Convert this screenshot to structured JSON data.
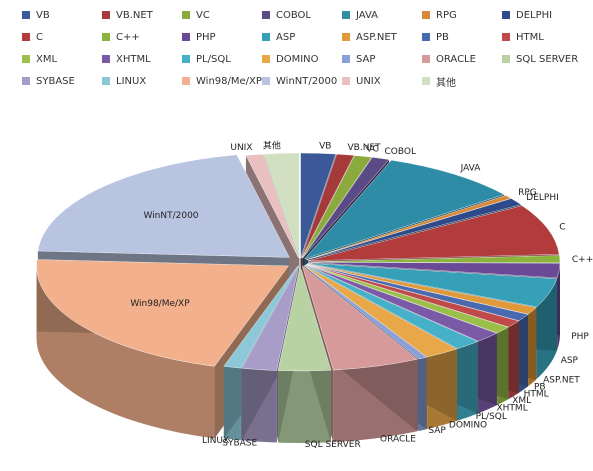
{
  "chart_data": {
    "type": "pie",
    "style": "3d-exploded",
    "legend_position": "top",
    "categories": [
      "VB",
      "VB.NET",
      "VC",
      "COBOL",
      "JAVA",
      "RPG",
      "DELPHI",
      "C",
      "C++",
      "PHP",
      "ASP",
      "ASP.NET",
      "PB",
      "HTML",
      "XML",
      "XHTML",
      "PL/SQL",
      "DOMINO",
      "SAP",
      "ORACLE",
      "SQL SERVER",
      "SYBASE",
      "LINUX",
      "Win98/Me/XP",
      "WinNT/2000",
      "UNIX",
      "其他"
    ],
    "values": [
      2.0,
      1.0,
      1.0,
      1.0,
      8.0,
      0.5,
      1.0,
      7.0,
      1.0,
      2.0,
      4.0,
      1.0,
      1.0,
      1.0,
      1.0,
      1.5,
      1.5,
      2.0,
      0.5,
      5.0,
      3.0,
      2.0,
      1.0,
      19.0,
      18.5,
      1.0,
      2.0
    ],
    "colors": [
      "#3b5998",
      "#a63a3a",
      "#8aaa3c",
      "#5a4a86",
      "#2f8ca6",
      "#d88a3a",
      "#2e4a8a",
      "#b23c3c",
      "#8ab43c",
      "#6a4a96",
      "#36a0b8",
      "#e09a3c",
      "#4a6ab0",
      "#c04a4a",
      "#9ac04a",
      "#7a5aa6",
      "#46b0c8",
      "#e8a84a",
      "#8aa0d6",
      "#d69a9a",
      "#b8d2a4",
      "#a89cc8",
      "#8cc8d8",
      "#f2b08c",
      "#b8c4e0",
      "#e8c0c0",
      "#d0e0c0"
    ],
    "labels": [
      "VB",
      "VB.NET",
      "VC",
      "COBOL",
      "JAVA",
      "RPG",
      "DELPHI",
      "C",
      "C++",
      "PHP",
      "ASP",
      "ASP.NET",
      "PB",
      "HTML",
      "XML",
      "XHTML",
      "PL/SQL",
      "DOMINO",
      "SAP",
      "ORACLE",
      "SQL SERVER",
      "SYBASE",
      "LINUX",
      "Win98/Me/XP",
      "WinNT/2000",
      "UNIX",
      "其他"
    ]
  }
}
